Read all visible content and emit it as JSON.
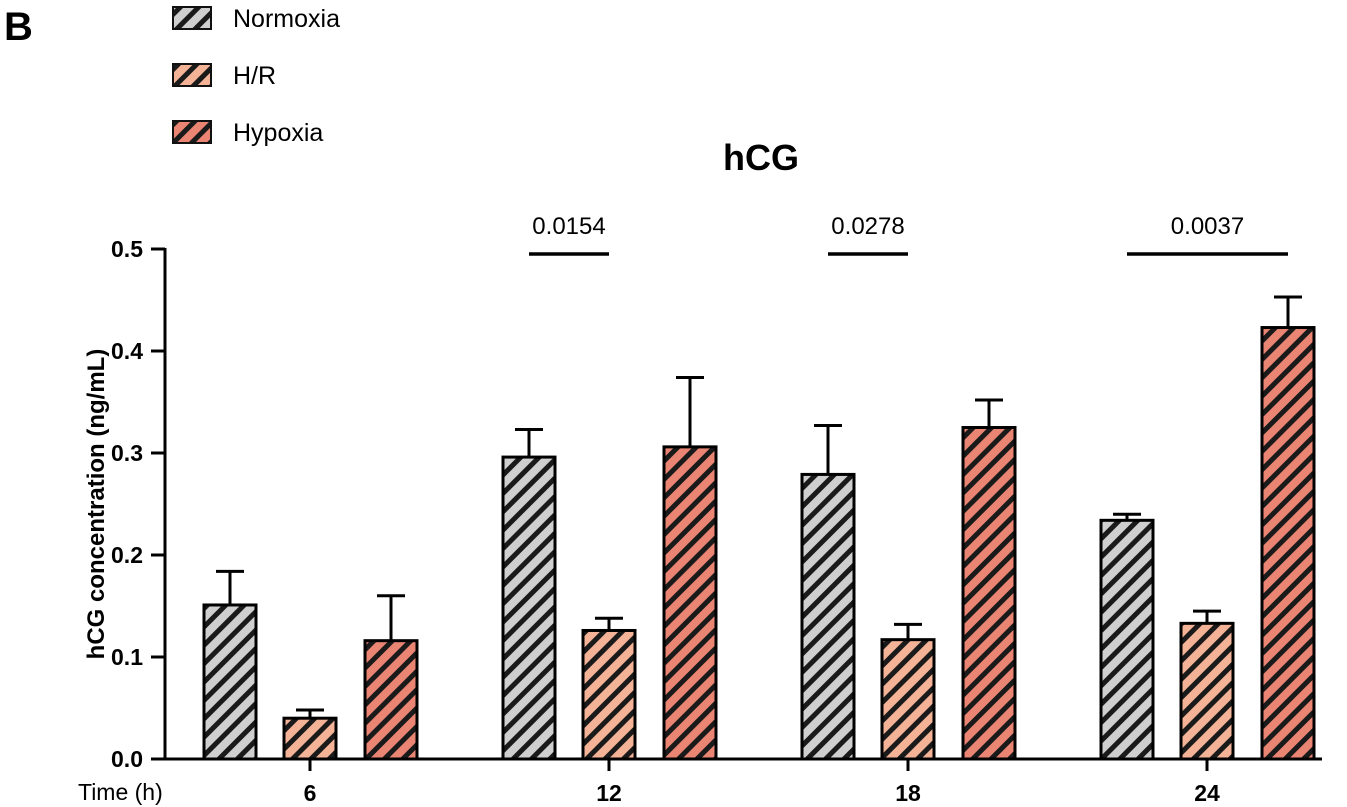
{
  "panel_label": "B",
  "chart_data": {
    "type": "bar",
    "title": "hCG",
    "xlabel": "Time (h)",
    "ylabel": "hCG concentration (ng/mL)",
    "ylim": [
      0,
      0.5
    ],
    "yticks": [
      "0.0",
      "0.1",
      "0.2",
      "0.3",
      "0.4",
      "0.5"
    ],
    "categories": [
      "6",
      "12",
      "18",
      "24"
    ],
    "legend_position": "top-left",
    "grid": false,
    "series": [
      {
        "name": "Normoxia",
        "color": "#cfcfcf",
        "values": [
          0.151,
          0.296,
          0.279,
          0.234
        ],
        "errors": [
          0.033,
          0.027,
          0.048,
          0.006
        ]
      },
      {
        "name": "H/R",
        "color": "#f4b397",
        "values": [
          0.04,
          0.126,
          0.117,
          0.133
        ],
        "errors": [
          0.008,
          0.012,
          0.015,
          0.012
        ]
      },
      {
        "name": "Hypoxia",
        "color": "#ea8573",
        "values": [
          0.116,
          0.306,
          0.325,
          0.423
        ],
        "errors": [
          0.044,
          0.068,
          0.027,
          0.03
        ]
      }
    ],
    "annotations": [
      {
        "category": "12",
        "text": "0.0154",
        "from_series": 0,
        "to_series": 1
      },
      {
        "category": "18",
        "text": "0.0278",
        "from_series": 0,
        "to_series": 1
      },
      {
        "category": "24",
        "text": "0.0037",
        "from_series": 0,
        "to_series": 2
      }
    ]
  }
}
